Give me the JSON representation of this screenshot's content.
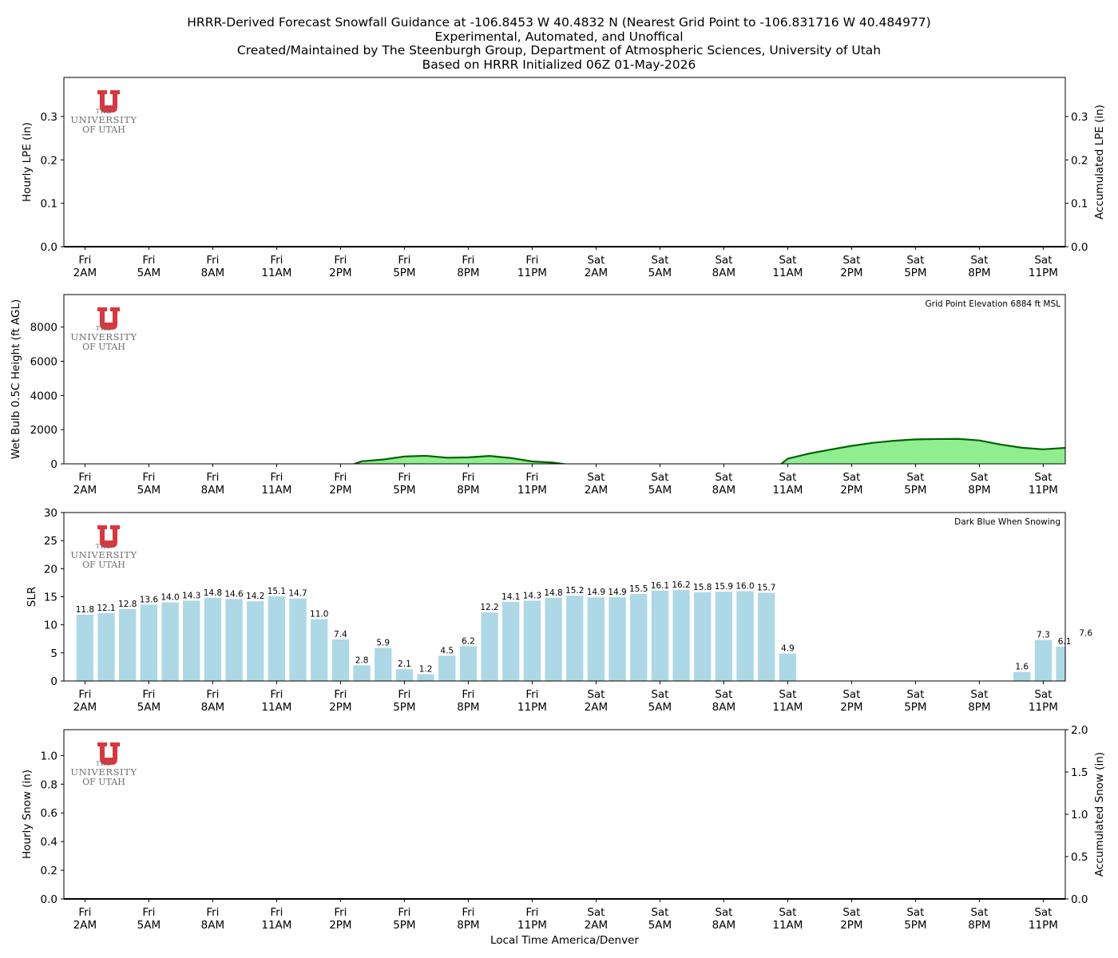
{
  "title_lines": [
    "HRRR-Derived Forecast Snowfall Guidance at -106.8453 W 40.4832 N (Nearest Grid Point to -106.831716 W 40.484977)",
    "Experimental, Automated, and Unoffical",
    "Created/Maintained by The Steenburgh Group, Department of Atmospheric Sciences, University of Utah",
    "Based on HRRR Initialized 06Z 01-May-2026"
  ],
  "xlabel": "Local Time America/Denver",
  "logo": {
    "line1": "THE",
    "line2": "UNIVERSITY",
    "line3": "OF UTAH",
    "color": "#d9363e"
  },
  "x_ticks": [
    {
      "day": "Fri",
      "time": "2AM"
    },
    {
      "day": "Fri",
      "time": "5AM"
    },
    {
      "day": "Fri",
      "time": "8AM"
    },
    {
      "day": "Fri",
      "time": "11AM"
    },
    {
      "day": "Fri",
      "time": "2PM"
    },
    {
      "day": "Fri",
      "time": "5PM"
    },
    {
      "day": "Fri",
      "time": "8PM"
    },
    {
      "day": "Fri",
      "time": "11PM"
    },
    {
      "day": "Sat",
      "time": "2AM"
    },
    {
      "day": "Sat",
      "time": "5AM"
    },
    {
      "day": "Sat",
      "time": "8AM"
    },
    {
      "day": "Sat",
      "time": "11AM"
    },
    {
      "day": "Sat",
      "time": "2PM"
    },
    {
      "day": "Sat",
      "time": "5PM"
    },
    {
      "day": "Sat",
      "time": "8PM"
    },
    {
      "day": "Sat",
      "time": "11PM"
    }
  ],
  "chart_data": [
    {
      "type": "bar",
      "name": "hourly-lpe",
      "ylabel": "Hourly LPE (in)",
      "ylabel_right": "Accumulated LPE (in)",
      "ylim": [
        0,
        0.39
      ],
      "yticks": [
        "0.0",
        "0.1",
        "0.2",
        "0.3"
      ],
      "ylim_right": [
        0,
        0.39
      ],
      "yticks_right": [
        "0.0",
        "0.1",
        "0.2",
        "0.3"
      ],
      "hour_start": 1,
      "hour_end": 48,
      "values": [],
      "accumulated": 0.0,
      "line_color": "#000000"
    },
    {
      "type": "area",
      "name": "wet-bulb-height",
      "ylabel": "Wet Bulb 0.5C Height (ft AGL)",
      "annotation": "Grid Point Elevation 6884 ft MSL",
      "ylim": [
        0,
        9900
      ],
      "yticks": [
        "0",
        "2000",
        "4000",
        "6000",
        "8000"
      ],
      "fill_color": "#90ee90",
      "line_color": "#006400",
      "hour_start": 1,
      "hour_end": 48,
      "points": [
        {
          "h": 1,
          "v": -2500
        },
        {
          "h": 12,
          "v": -2500
        },
        {
          "h": 13,
          "v": -300
        },
        {
          "h": 14,
          "v": 150
        },
        {
          "h": 15,
          "v": 250
        },
        {
          "h": 16,
          "v": 430
        },
        {
          "h": 17,
          "v": 470
        },
        {
          "h": 18,
          "v": 360
        },
        {
          "h": 19,
          "v": 380
        },
        {
          "h": 20,
          "v": 460
        },
        {
          "h": 21,
          "v": 340
        },
        {
          "h": 22,
          "v": 140
        },
        {
          "h": 23,
          "v": 70
        },
        {
          "h": 24,
          "v": -100
        },
        {
          "h": 25,
          "v": -700
        },
        {
          "h": 33,
          "v": -700
        },
        {
          "h": 34,
          "v": 300
        },
        {
          "h": 35,
          "v": 600
        },
        {
          "h": 36,
          "v": 830
        },
        {
          "h": 37,
          "v": 1050
        },
        {
          "h": 38,
          "v": 1230
        },
        {
          "h": 39,
          "v": 1350
        },
        {
          "h": 40,
          "v": 1430
        },
        {
          "h": 41,
          "v": 1450
        },
        {
          "h": 42,
          "v": 1460
        },
        {
          "h": 43,
          "v": 1370
        },
        {
          "h": 44,
          "v": 1130
        },
        {
          "h": 45,
          "v": 940
        },
        {
          "h": 46,
          "v": 850
        },
        {
          "h": 47,
          "v": 930
        },
        {
          "h": 48,
          "v": 850
        }
      ]
    },
    {
      "type": "bar",
      "name": "slr",
      "ylabel": "SLR",
      "annotation": "Dark Blue When Snowing",
      "ylim": [
        0,
        30
      ],
      "yticks": [
        "0",
        "5",
        "10",
        "15",
        "20",
        "25",
        "30"
      ],
      "bar_color": "#add8e6",
      "hour_start": 1,
      "hour_end": 48,
      "bars": [
        {
          "h": 1,
          "v": 11.8
        },
        {
          "h": 2,
          "v": 12.1
        },
        {
          "h": 3,
          "v": 12.8
        },
        {
          "h": 4,
          "v": 13.6
        },
        {
          "h": 5,
          "v": 14.0
        },
        {
          "h": 6,
          "v": 14.3
        },
        {
          "h": 7,
          "v": 14.8
        },
        {
          "h": 8,
          "v": 14.6
        },
        {
          "h": 9,
          "v": 14.2
        },
        {
          "h": 10,
          "v": 15.1
        },
        {
          "h": 11,
          "v": 14.7
        },
        {
          "h": 12,
          "v": 11.0
        },
        {
          "h": 13,
          "v": 7.4
        },
        {
          "h": 14,
          "v": 2.8
        },
        {
          "h": 15,
          "v": 5.9
        },
        {
          "h": 16,
          "v": 2.1
        },
        {
          "h": 17,
          "v": 1.2
        },
        {
          "h": 18,
          "v": 4.5
        },
        {
          "h": 19,
          "v": 6.2
        },
        {
          "h": 20,
          "v": 12.2
        },
        {
          "h": 21,
          "v": 14.1
        },
        {
          "h": 22,
          "v": 14.3
        },
        {
          "h": 23,
          "v": 14.8
        },
        {
          "h": 24,
          "v": 15.2
        },
        {
          "h": 25,
          "v": 14.9
        },
        {
          "h": 26,
          "v": 14.9
        },
        {
          "h": 27,
          "v": 15.5
        },
        {
          "h": 28,
          "v": 16.1
        },
        {
          "h": 29,
          "v": 16.2
        },
        {
          "h": 30,
          "v": 15.8
        },
        {
          "h": 31,
          "v": 15.9
        },
        {
          "h": 32,
          "v": 16.0
        },
        {
          "h": 33,
          "v": 15.7
        },
        {
          "h": 34,
          "v": 4.9
        },
        {
          "h": 45,
          "v": 1.6
        },
        {
          "h": 46,
          "v": 7.3
        },
        {
          "h": 47,
          "v": 6.1
        },
        {
          "h": 48,
          "v": 7.6
        }
      ]
    },
    {
      "type": "bar",
      "name": "hourly-snow",
      "ylabel": "Hourly Snow (in)",
      "ylabel_right": "Accumulated Snow (in)",
      "ylim": [
        0,
        1.18
      ],
      "yticks": [
        "0.0",
        "0.2",
        "0.4",
        "0.6",
        "0.8",
        "1.0"
      ],
      "ylim_right": [
        0,
        2.0
      ],
      "yticks_right": [
        "0.0",
        "0.5",
        "1.0",
        "1.5",
        "2.0"
      ],
      "hour_start": 1,
      "hour_end": 48,
      "values": [],
      "accumulated": 0.0,
      "line_color": "#000000"
    }
  ]
}
